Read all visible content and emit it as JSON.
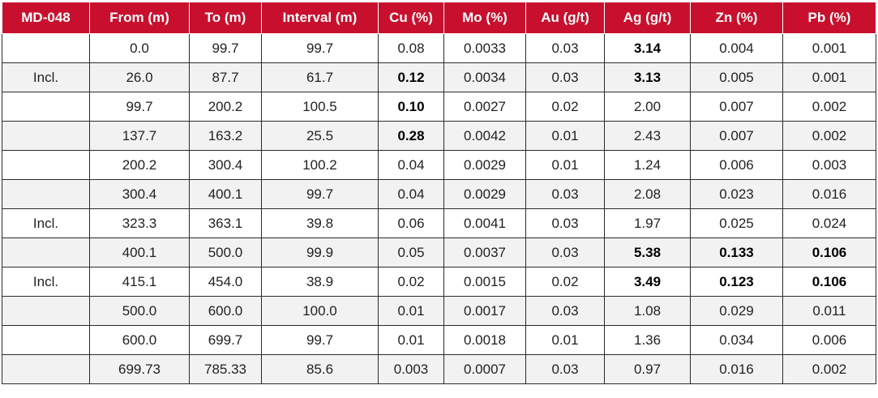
{
  "table": {
    "header": [
      "MD-048",
      "From (m)",
      "To (m)",
      "Interval (m)",
      "Cu (%)",
      "Mo (%)",
      "Au (g/t)",
      "Ag (g/t)",
      "Zn (%)",
      "Pb (%)"
    ],
    "rows": [
      [
        null,
        "0.0",
        "99.7",
        "99.7",
        "0.08",
        "0.0033",
        "0.03",
        "3.14",
        "0.004",
        "0.001"
      ],
      [
        "Incl.",
        "26.0",
        "87.7",
        "61.7",
        "0.12",
        "0.0034",
        "0.03",
        "3.13",
        "0.005",
        "0.001"
      ],
      [
        null,
        "99.7",
        "200.2",
        "100.5",
        "0.10",
        "0.0027",
        "0.02",
        "2.00",
        "0.007",
        "0.002"
      ],
      [
        null,
        "137.7",
        "163.2",
        "25.5",
        "0.28",
        "0.0042",
        "0.01",
        "2.43",
        "0.007",
        "0.002"
      ],
      [
        null,
        "200.2",
        "300.4",
        "100.2",
        "0.04",
        "0.0029",
        "0.01",
        "1.24",
        "0.006",
        "0.003"
      ],
      [
        null,
        "300.4",
        "400.1",
        "99.7",
        "0.04",
        "0.0029",
        "0.03",
        "2.08",
        "0.023",
        "0.016"
      ],
      [
        "Incl.",
        "323.3",
        "363.1",
        "39.8",
        "0.06",
        "0.0041",
        "0.03",
        "1.97",
        "0.025",
        "0.024"
      ],
      [
        null,
        "400.1",
        "500.0",
        "99.9",
        "0.05",
        "0.0037",
        "0.03",
        "5.38",
        "0.133",
        "0.106"
      ],
      [
        "Incl.",
        "415.1",
        "454.0",
        "38.9",
        "0.02",
        "0.0015",
        "0.02",
        "3.49",
        "0.123",
        "0.106"
      ],
      [
        null,
        "500.0",
        "600.0",
        "100.0",
        "0.01",
        "0.0017",
        "0.03",
        "1.08",
        "0.029",
        "0.011"
      ],
      [
        null,
        "600.0",
        "699.7",
        "99.7",
        "0.01",
        "0.0018",
        "0.01",
        "1.36",
        "0.034",
        "0.006"
      ],
      [
        null,
        "699.73",
        "785.33",
        "85.6",
        "0.003",
        "0.0007",
        "0.03",
        "0.97",
        "0.016",
        "0.002"
      ]
    ],
    "bold": [
      [
        0,
        7
      ],
      [
        1,
        4
      ],
      [
        1,
        7
      ],
      [
        2,
        4
      ],
      [
        3,
        4
      ],
      [
        7,
        7
      ],
      [
        7,
        8
      ],
      [
        7,
        9
      ],
      [
        8,
        7
      ],
      [
        8,
        8
      ],
      [
        8,
        9
      ]
    ]
  }
}
